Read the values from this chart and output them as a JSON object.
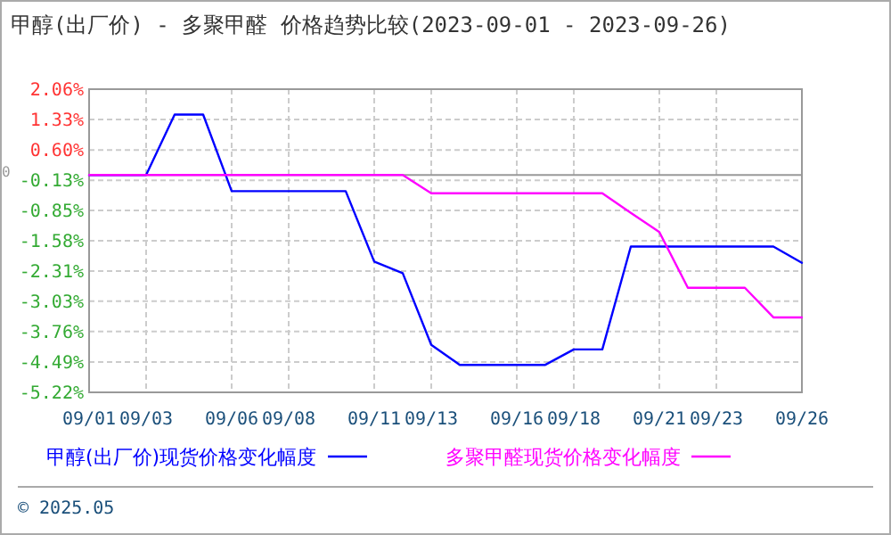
{
  "chart_data": {
    "type": "line",
    "title": "甲醇(出厂价) - 多聚甲醛 价格趋势比较(2023-09-01 - 2023-09-26)",
    "x": [
      "2023-09-01",
      "2023-09-02",
      "2023-09-03",
      "2023-09-04",
      "2023-09-05",
      "2023-09-06",
      "2023-09-07",
      "2023-09-08",
      "2023-09-09",
      "2023-09-10",
      "2023-09-11",
      "2023-09-12",
      "2023-09-13",
      "2023-09-14",
      "2023-09-15",
      "2023-09-16",
      "2023-09-17",
      "2023-09-18",
      "2023-09-19",
      "2023-09-20",
      "2023-09-21",
      "2023-09-22",
      "2023-09-23",
      "2023-09-24",
      "2023-09-25",
      "2023-09-26"
    ],
    "series": [
      {
        "name": "甲醇(出厂价)现货价格变化幅度",
        "color": "#0000ff",
        "values": [
          0,
          0,
          0,
          1.45,
          1.45,
          -0.39,
          -0.39,
          -0.39,
          -0.39,
          -0.39,
          -2.08,
          -2.36,
          -4.08,
          -4.56,
          -4.56,
          -4.56,
          -4.56,
          -4.19,
          -4.19,
          -1.72,
          -1.72,
          -1.72,
          -1.72,
          -1.72,
          -1.72,
          -2.11
        ]
      },
      {
        "name": "多聚甲醛现货价格变化幅度",
        "color": "#ff00ff",
        "values": [
          0,
          0,
          0,
          0,
          0,
          0,
          0,
          0,
          0,
          0,
          0,
          0,
          -0.44,
          -0.44,
          -0.44,
          -0.44,
          -0.44,
          -0.44,
          -0.44,
          -0.91,
          -1.37,
          -2.71,
          -2.71,
          -2.71,
          -3.42,
          -3.42
        ]
      }
    ],
    "xlim": [
      "2023-09-01",
      "2023-09-26"
    ],
    "xticks": [
      {
        "value": "2023-09-01",
        "label": "09/01"
      },
      {
        "value": "2023-09-03",
        "label": "09/03"
      },
      {
        "value": "2023-09-06",
        "label": "09/06"
      },
      {
        "value": "2023-09-08",
        "label": "09/08"
      },
      {
        "value": "2023-09-11",
        "label": "09/11"
      },
      {
        "value": "2023-09-13",
        "label": "09/13"
      },
      {
        "value": "2023-09-16",
        "label": "09/16"
      },
      {
        "value": "2023-09-18",
        "label": "09/18"
      },
      {
        "value": "2023-09-21",
        "label": "09/21"
      },
      {
        "value": "2023-09-23",
        "label": "09/23"
      },
      {
        "value": "2023-09-26",
        "label": "09/26"
      }
    ],
    "ylim": [
      -5.22,
      2.06
    ],
    "yticks": [
      {
        "value": 2.06,
        "label": "2.06%"
      },
      {
        "value": 1.33,
        "label": "1.33%"
      },
      {
        "value": 0.6,
        "label": "0.60%"
      },
      {
        "value": -0.13,
        "label": "-0.13%"
      },
      {
        "value": -0.85,
        "label": "-0.85%"
      },
      {
        "value": -1.58,
        "label": "-1.58%"
      },
      {
        "value": -2.31,
        "label": "-2.31%"
      },
      {
        "value": -3.03,
        "label": "-3.03%"
      },
      {
        "value": -3.76,
        "label": "-3.76%"
      },
      {
        "value": -4.49,
        "label": "-4.49%"
      },
      {
        "value": -5.22,
        "label": "-5.22%"
      }
    ],
    "ref_lines": [
      {
        "axis": "y",
        "value": 0,
        "label": "0",
        "color": "#999999"
      }
    ],
    "grid": true,
    "legend": "bottom",
    "marker": "none",
    "line_style": "solid",
    "annotations": [
      "© 2025.05"
    ]
  }
}
